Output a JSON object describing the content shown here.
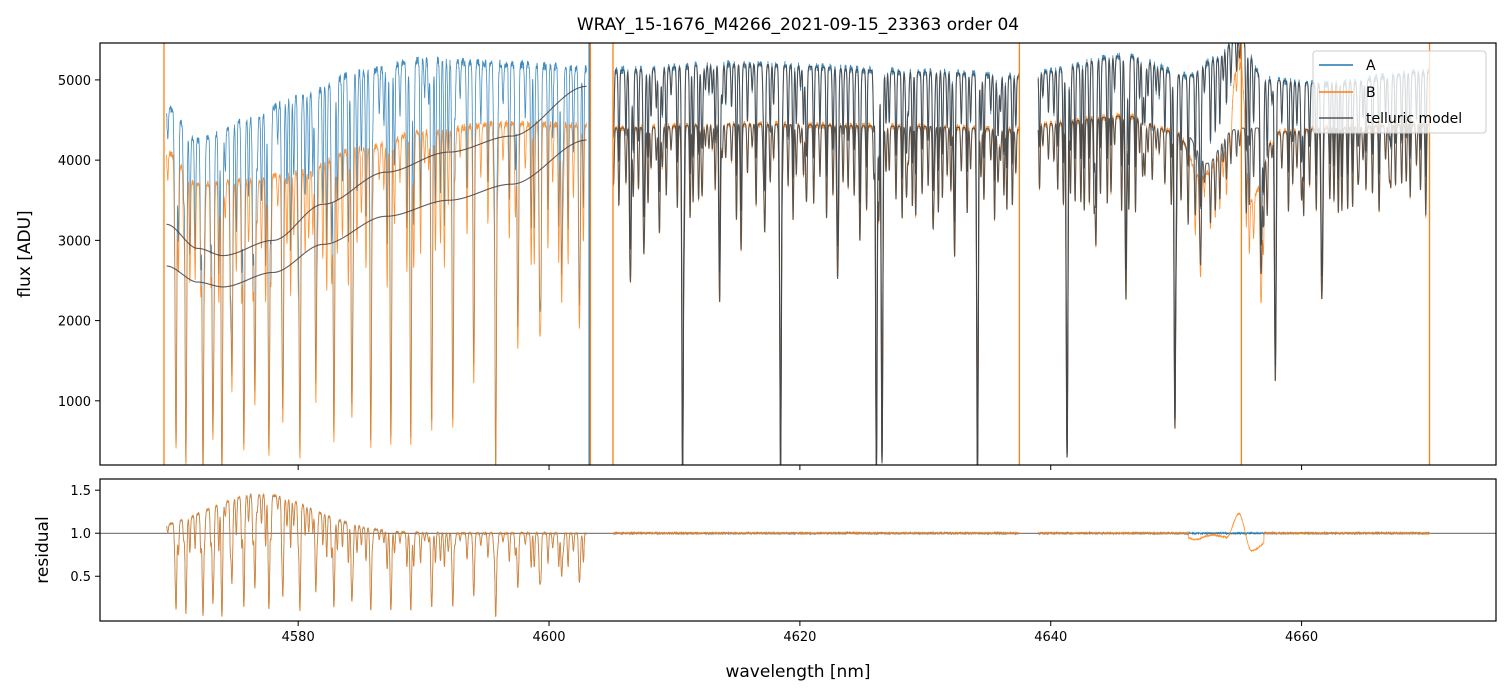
{
  "chart_data": {
    "type": "line",
    "title": "WRAY_15-1676_M4266_2021-09-15_23363  order 04",
    "xlabel": "wavelength [nm]",
    "xlim": [
      4564.2,
      4675.5
    ],
    "xticks": [
      4580,
      4600,
      4620,
      4640,
      4660
    ],
    "panels": [
      {
        "name": "flux",
        "ylabel": "flux [ADU]",
        "ylim": [
          200,
          5460
        ],
        "yticks": [
          1000,
          2000,
          3000,
          4000,
          5000
        ]
      },
      {
        "name": "residual",
        "ylabel": "residual",
        "ylim": [
          -0.02,
          1.63
        ],
        "yticks": [
          0.5,
          1.0,
          1.5
        ],
        "yticklabels": [
          "0.5",
          "1.0",
          "1.5"
        ],
        "hline": 1.0
      }
    ],
    "legend": {
      "placement": "top-right",
      "entries": [
        "A",
        "B",
        "telluric model"
      ]
    },
    "colors": {
      "A": "#1f77b4",
      "B": "#ff7f0e",
      "model": "#444444"
    },
    "segments": [
      [
        4569.5,
        4603.0
      ],
      [
        4605.1,
        4637.5
      ],
      [
        4639.0,
        4670.2
      ]
    ],
    "continuum_A": [
      [
        4569.5,
        4650
      ],
      [
        4572,
        4250
      ],
      [
        4576,
        4500
      ],
      [
        4580,
        4800
      ],
      [
        4585,
        5100
      ],
      [
        4590,
        5250
      ],
      [
        4596,
        5200
      ],
      [
        4603,
        5150
      ],
      [
        4605,
        5120
      ],
      [
        4615,
        5200
      ],
      [
        4630,
        5100
      ],
      [
        4637.5,
        5050
      ],
      [
        4639,
        5100
      ],
      [
        4646,
        5300
      ],
      [
        4651,
        5050
      ],
      [
        4653,
        5250
      ],
      [
        4655,
        5550
      ],
      [
        4657,
        5000
      ],
      [
        4662,
        4950
      ],
      [
        4670,
        5100
      ]
    ],
    "continuum_B": [
      [
        4569.5,
        4100
      ],
      [
        4572,
        3700
      ],
      [
        4576,
        3750
      ],
      [
        4580,
        3850
      ],
      [
        4585,
        4150
      ],
      [
        4590,
        4350
      ],
      [
        4596,
        4450
      ],
      [
        4603,
        4450
      ],
      [
        4605,
        4400
      ],
      [
        4615,
        4450
      ],
      [
        4630,
        4420
      ],
      [
        4637.5,
        4380
      ],
      [
        4639,
        4450
      ],
      [
        4646,
        4550
      ],
      [
        4650,
        4350
      ],
      [
        4652,
        3800
      ],
      [
        4654,
        4100
      ],
      [
        4655,
        5400
      ],
      [
        4656,
        3500
      ],
      [
        4658,
        4350
      ],
      [
        4662,
        4400
      ],
      [
        4670,
        4450
      ]
    ],
    "smooth_model_A": [
      [
        4569.5,
        3200
      ],
      [
        4572,
        2900
      ],
      [
        4574,
        2810
      ],
      [
        4578,
        3000
      ],
      [
        4582,
        3450
      ],
      [
        4587,
        3850
      ],
      [
        4592,
        4100
      ],
      [
        4597,
        4300
      ],
      [
        4603,
        4920
      ]
    ],
    "smooth_model_B": [
      [
        4569.5,
        2680
      ],
      [
        4572,
        2480
      ],
      [
        4574,
        2420
      ],
      [
        4578,
        2600
      ],
      [
        4582,
        2950
      ],
      [
        4587,
        3300
      ],
      [
        4592,
        3500
      ],
      [
        4597,
        3700
      ],
      [
        4603,
        4250
      ]
    ],
    "absorption_lines": [
      [
        4570.26,
        0.9
      ],
      [
        4571.05,
        0.95
      ],
      [
        4572.41,
        0.97
      ],
      [
        4573.2,
        0.85
      ],
      [
        4573.92,
        0.98
      ],
      [
        4574.72,
        0.7
      ],
      [
        4575.67,
        0.9
      ],
      [
        4576.55,
        0.75
      ],
      [
        4577.67,
        0.92
      ],
      [
        4578.78,
        0.8
      ],
      [
        4580.14,
        0.93
      ],
      [
        4581.41,
        0.75
      ],
      [
        4582.85,
        0.88
      ],
      [
        4584.28,
        0.8
      ],
      [
        4585.79,
        0.9
      ],
      [
        4587.39,
        0.85
      ],
      [
        4588.98,
        0.9
      ],
      [
        4590.65,
        0.8
      ],
      [
        4592.33,
        0.85
      ],
      [
        4594.0,
        0.7
      ],
      [
        4595.75,
        0.97
      ],
      [
        4597.51,
        0.6
      ],
      [
        4599.26,
        0.55
      ],
      [
        4601.01,
        0.5
      ],
      [
        4602.45,
        0.45
      ],
      [
        4606.5,
        0.4
      ],
      [
        4607.6,
        0.25
      ],
      [
        4608.8,
        0.3
      ],
      [
        4610.65,
        0.98
      ],
      [
        4612.2,
        0.2
      ],
      [
        4613.6,
        0.5
      ],
      [
        4615.3,
        0.2
      ],
      [
        4617.2,
        0.3
      ],
      [
        4618.46,
        0.98
      ],
      [
        4620.5,
        0.15
      ],
      [
        4623.0,
        0.4
      ],
      [
        4624.8,
        0.15
      ],
      [
        4626.1,
        0.97
      ],
      [
        4626.55,
        0.95
      ],
      [
        4628.5,
        0.2
      ],
      [
        4630.7,
        0.15
      ],
      [
        4632.3,
        0.2
      ],
      [
        4634.16,
        0.98
      ],
      [
        4635.8,
        0.15
      ],
      [
        4641.3,
        0.92
      ],
      [
        4643.6,
        0.35
      ],
      [
        4646.0,
        0.5
      ],
      [
        4647.5,
        0.15
      ],
      [
        4649.9,
        0.85
      ],
      [
        4651.9,
        0.2
      ],
      [
        4656.8,
        0.35
      ],
      [
        4657.9,
        0.65
      ],
      [
        4660.0,
        0.2
      ],
      [
        4661.6,
        0.45
      ],
      [
        4664.5,
        0.15
      ],
      [
        4667.0,
        0.15
      ]
    ],
    "spikes": [
      {
        "series": "B",
        "x": 4569.3
      },
      {
        "series": "A",
        "x": 4603.2
      },
      {
        "series": "B",
        "x": 4603.3
      },
      {
        "series": "B",
        "x": 4605.1
      },
      {
        "series": "B",
        "x": 4637.5
      },
      {
        "series": "B",
        "x": 4655.2
      },
      {
        "series": "B",
        "x": 4670.2
      }
    ]
  }
}
